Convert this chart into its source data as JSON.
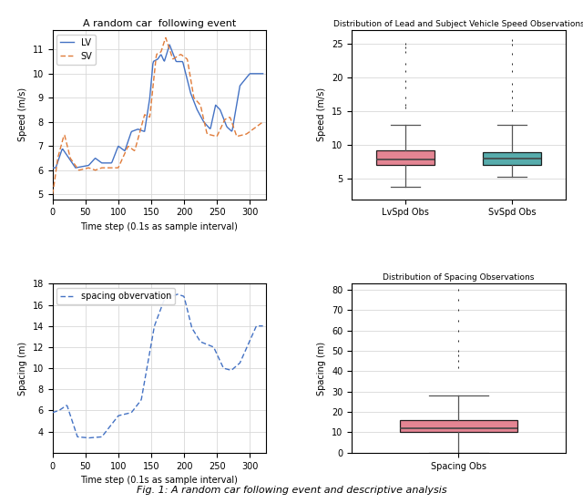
{
  "title_top_left": "A random car  following event",
  "title_top_right": "Distribution of Lead and Subject Vehicle Speed Observations",
  "title_bottom_right": "Distribution of Spacing Observations",
  "xlabel_time": "Time step (0.1s as sample interval)",
  "ylabel_speed": "Speed (m/s)",
  "ylabel_spacing": "Spacing (m)",
  "ylabel_boxspeed": "Speed (m/s)",
  "ylabel_boxspacing": "Spacing (m)",
  "lv_color": "#4472C4",
  "sv_color": "#E07B39",
  "spacing_color": "#4472C4",
  "box_lv_color": "#E07080",
  "box_sv_color": "#3A9E9E",
  "box_spacing_color": "#E07080",
  "lv_label": "LV",
  "sv_label": "SV",
  "spacing_label": "spacing obvervation",
  "lv_box_label": "LvSpd Obs",
  "sv_box_label": "SvSpd Obs",
  "spacing_box_label": "Spacing Obs",
  "fig_caption": "Fig. 1: A random car following event and descriptive analysis",
  "lv_speed_stats": {
    "whislo": 3.8,
    "q1": 7.0,
    "med": 7.9,
    "q3": 9.2,
    "whishi": 13.0,
    "fliers_high": [
      25.0,
      24.5,
      23.8,
      22.0,
      21.0,
      19.5,
      18.5,
      17.0,
      16.0,
      15.5
    ]
  },
  "sv_speed_stats": {
    "whislo": 5.3,
    "q1": 7.0,
    "med": 8.0,
    "q3": 9.0,
    "whishi": 13.0,
    "fliers_high": [
      25.5,
      24.8,
      23.5,
      22.0,
      21.0,
      19.0,
      18.0,
      17.0,
      16.0,
      15.2
    ]
  },
  "spacing_stats": {
    "whislo": 0.0,
    "q1": 10.0,
    "med": 12.0,
    "q3": 16.0,
    "whishi": 28.0,
    "fliers_high": [
      80.0,
      75.0,
      70.0,
      65.0,
      60.0,
      55.0,
      50.0,
      48.0,
      45.0,
      42.0
    ]
  }
}
